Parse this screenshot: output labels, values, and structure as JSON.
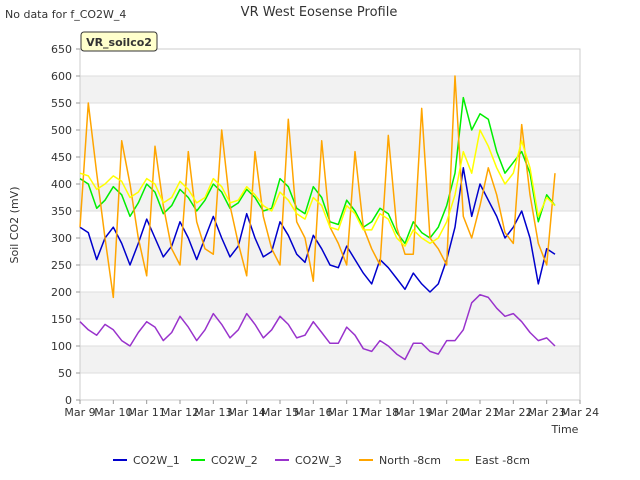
{
  "corner_note": "No data for f_CO2W_4",
  "station_label": "VR_soilco2",
  "chart_data": {
    "type": "line",
    "title": "VR West Eosense Profile",
    "xlabel": "Time",
    "ylabel": "Soil CO2 (mV)",
    "xlim": [
      9,
      24
    ],
    "ylim": [
      0,
      650
    ],
    "grid": true,
    "legend_position": "bottom",
    "x_tick_values": [
      9,
      10,
      11,
      12,
      13,
      14,
      15,
      16,
      17,
      18,
      19,
      20,
      21,
      22,
      23,
      24
    ],
    "x_tick_labels": [
      "Mar 9",
      "Mar 10",
      "Mar 11",
      "Mar 12",
      "Mar 13",
      "Mar 14",
      "Mar 15",
      "Mar 16",
      "Mar 17",
      "Mar 18",
      "Mar 19",
      "Mar 20",
      "Mar 21",
      "Mar 22",
      "Mar 23",
      "Mar 24"
    ],
    "y_tick_values": [
      0,
      50,
      100,
      150,
      200,
      250,
      300,
      350,
      400,
      450,
      500,
      550,
      600,
      650
    ],
    "y_tick_labels": [
      "0",
      "50",
      "100",
      "150",
      "200",
      "250",
      "300",
      "350",
      "400",
      "450",
      "500",
      "550",
      "600",
      "650"
    ],
    "x": [
      9.0,
      9.25,
      9.5,
      9.75,
      10.0,
      10.25,
      10.5,
      10.75,
      11.0,
      11.25,
      11.5,
      11.75,
      12.0,
      12.25,
      12.5,
      12.75,
      13.0,
      13.25,
      13.5,
      13.75,
      14.0,
      14.25,
      14.5,
      14.75,
      15.0,
      15.25,
      15.5,
      15.75,
      16.0,
      16.25,
      16.5,
      16.75,
      17.0,
      17.25,
      17.5,
      17.75,
      18.0,
      18.25,
      18.5,
      18.75,
      19.0,
      19.25,
      19.5,
      19.75,
      20.0,
      20.25,
      20.5,
      20.75,
      21.0,
      21.25,
      21.5,
      21.75,
      22.0,
      22.25,
      22.5,
      22.75,
      23.0,
      23.25
    ],
    "series": [
      {
        "name": "CO2W_1",
        "color": "#0000cc",
        "values": [
          320,
          310,
          260,
          300,
          320,
          290,
          250,
          290,
          335,
          300,
          265,
          285,
          330,
          300,
          260,
          300,
          340,
          300,
          265,
          285,
          345,
          300,
          265,
          275,
          330,
          305,
          270,
          255,
          305,
          280,
          250,
          245,
          285,
          260,
          235,
          215,
          260,
          245,
          225,
          205,
          235,
          215,
          200,
          215,
          260,
          320,
          430,
          340,
          400,
          370,
          340,
          300,
          320,
          350,
          300,
          215,
          280,
          270
        ]
      },
      {
        "name": "CO2W_2",
        "color": "#00ee00",
        "values": [
          410,
          400,
          355,
          370,
          395,
          380,
          340,
          365,
          400,
          385,
          345,
          360,
          390,
          375,
          350,
          370,
          400,
          385,
          355,
          365,
          390,
          375,
          350,
          355,
          410,
          395,
          355,
          345,
          395,
          375,
          330,
          325,
          370,
          350,
          320,
          330,
          355,
          345,
          310,
          290,
          330,
          310,
          300,
          320,
          360,
          420,
          560,
          500,
          530,
          520,
          460,
          420,
          440,
          460,
          420,
          330,
          380,
          360
        ]
      },
      {
        "name": "CO2W_3",
        "color": "#9933cc",
        "values": [
          145,
          130,
          120,
          140,
          130,
          110,
          100,
          125,
          145,
          135,
          110,
          125,
          155,
          135,
          110,
          130,
          160,
          140,
          115,
          130,
          160,
          140,
          115,
          130,
          155,
          140,
          115,
          120,
          145,
          125,
          105,
          105,
          135,
          120,
          95,
          90,
          110,
          100,
          85,
          75,
          105,
          105,
          90,
          85,
          110,
          110,
          130,
          180,
          195,
          190,
          170,
          155,
          160,
          145,
          125,
          110,
          115,
          100
        ]
      },
      {
        "name": "North -8cm",
        "color": "#ffa500",
        "values": [
          320,
          550,
          420,
          300,
          190,
          480,
          400,
          300,
          230,
          470,
          360,
          280,
          250,
          460,
          330,
          280,
          270,
          500,
          360,
          290,
          230,
          460,
          340,
          280,
          250,
          520,
          330,
          300,
          220,
          480,
          320,
          290,
          250,
          460,
          320,
          280,
          250,
          490,
          320,
          270,
          270,
          540,
          300,
          280,
          250,
          600,
          340,
          300,
          360,
          430,
          380,
          310,
          290,
          510,
          380,
          290,
          250,
          420
        ]
      },
      {
        "name": "East -8cm",
        "color": "#ffff00",
        "values": [
          420,
          415,
          390,
          400,
          415,
          405,
          375,
          385,
          410,
          400,
          365,
          375,
          405,
          390,
          365,
          375,
          410,
          395,
          365,
          370,
          395,
          380,
          360,
          350,
          385,
          370,
          345,
          335,
          375,
          360,
          320,
          315,
          360,
          345,
          315,
          315,
          345,
          335,
          300,
          285,
          315,
          300,
          290,
          300,
          330,
          380,
          460,
          420,
          500,
          470,
          430,
          400,
          420,
          480,
          430,
          340,
          375,
          360
        ]
      }
    ]
  }
}
